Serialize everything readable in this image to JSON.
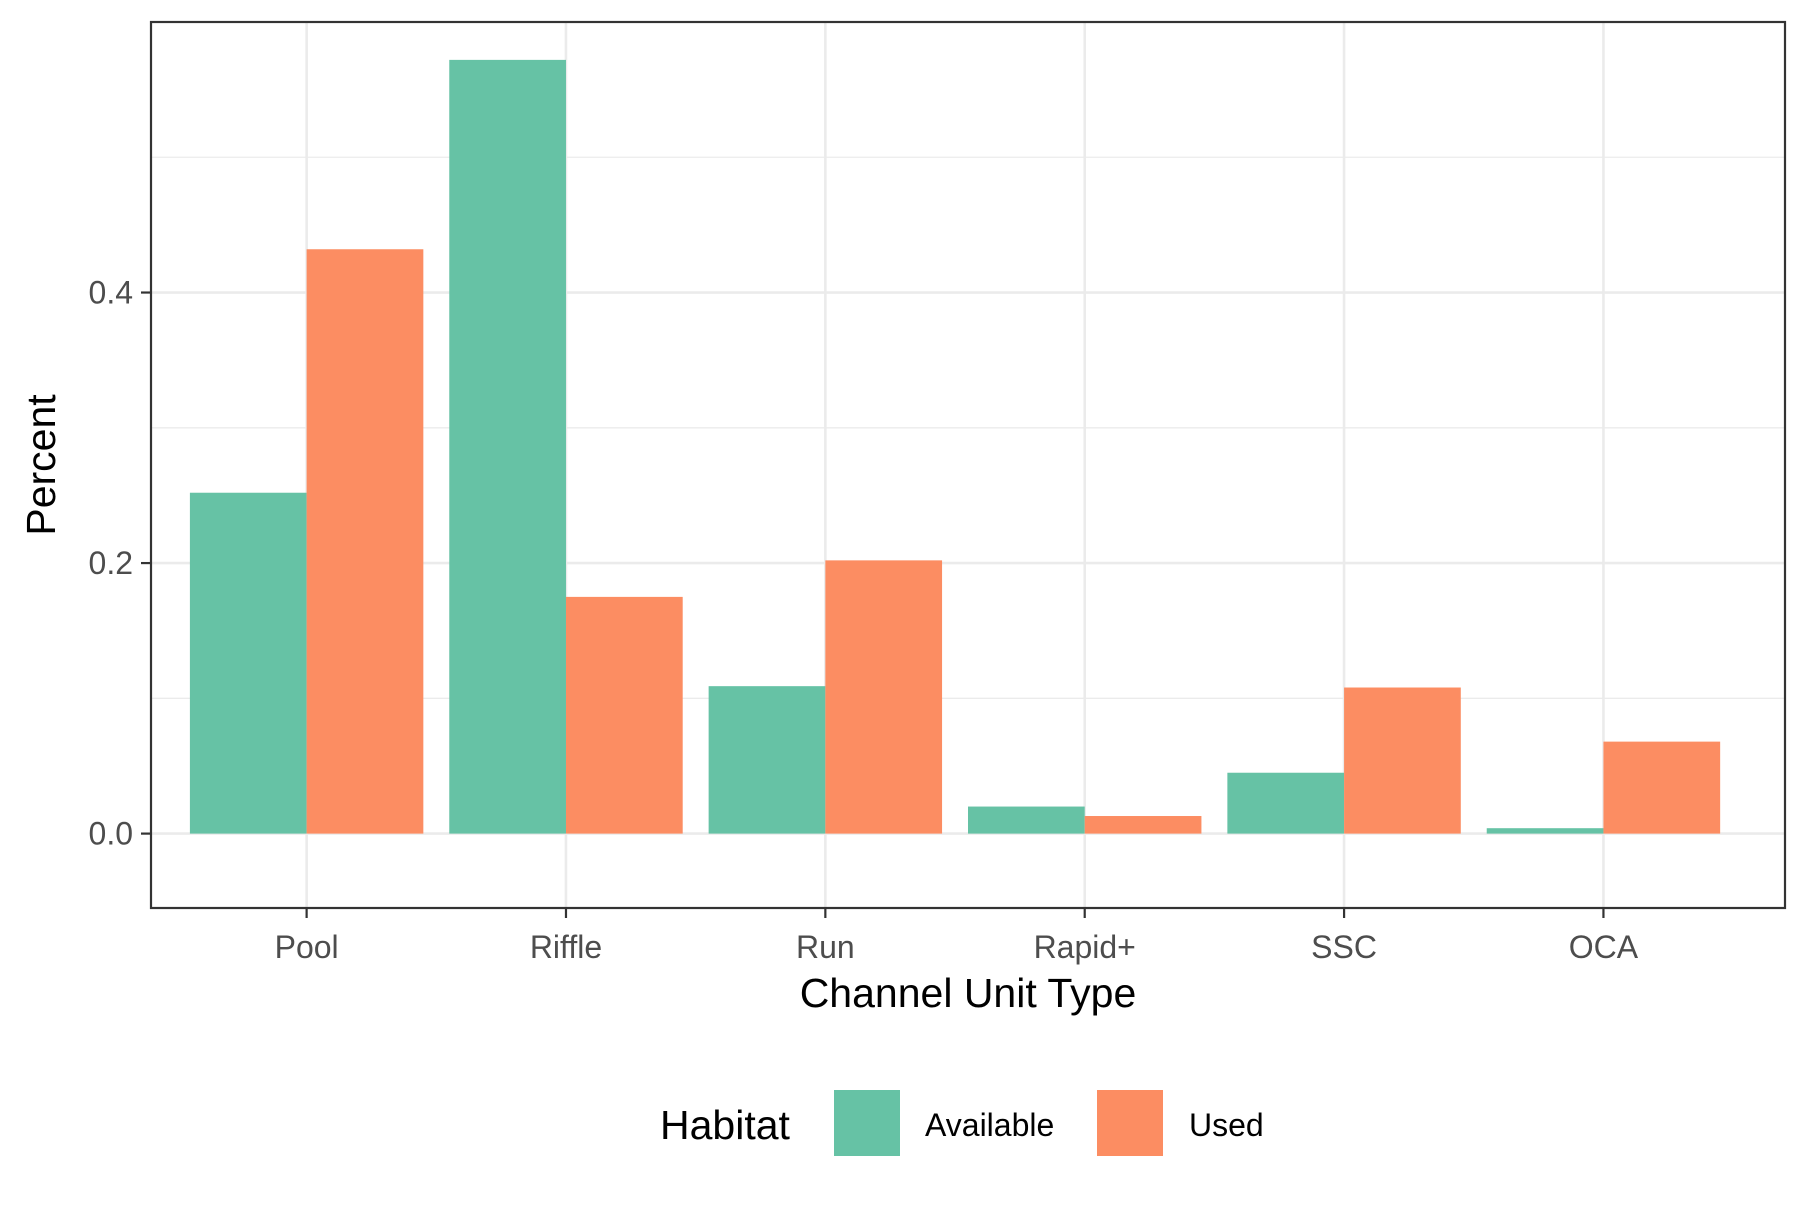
{
  "chart_data": {
    "type": "bar",
    "title": "",
    "xlabel": "Channel Unit Type",
    "ylabel": "Percent",
    "categories": [
      "Pool",
      "Riffle",
      "Run",
      "Rapid+",
      "SSC",
      "OCA"
    ],
    "series": [
      {
        "name": "Available",
        "color": "#66C2A5",
        "values": [
          0.252,
          0.572,
          0.109,
          0.02,
          0.045,
          0.004
        ]
      },
      {
        "name": "Used",
        "color": "#FC8D62",
        "values": [
          0.432,
          0.175,
          0.202,
          0.013,
          0.108,
          0.068
        ]
      }
    ],
    "ylim": [
      -0.055,
      0.6
    ],
    "yticks": [
      0.0,
      0.2,
      0.4
    ],
    "ytick_labels": [
      "0.0",
      "0.2",
      "0.4"
    ],
    "grid": true,
    "legend": {
      "title": "Habitat",
      "position": "bottom"
    }
  }
}
